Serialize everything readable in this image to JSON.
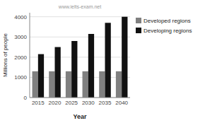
{
  "chart_data": {
    "type": "bar",
    "categories": [
      "2015",
      "2020",
      "2025",
      "2030",
      "2035",
      "2040"
    ],
    "series": [
      {
        "name": "Developed regions",
        "color": "#808080",
        "values": [
          1300,
          1300,
          1300,
          1300,
          1300,
          1300
        ]
      },
      {
        "name": "Developing regions",
        "color": "#111111",
        "values": [
          2150,
          2500,
          2800,
          3150,
          3700,
          4000
        ]
      }
    ],
    "x_label": "Year",
    "y_label": "Millions of people",
    "annotation": "www.ielts-exam.net",
    "ylim": [
      0,
      4200
    ],
    "yticks": [
      0,
      1000,
      2000,
      3000,
      4000
    ],
    "grid": true,
    "legend": "right"
  }
}
